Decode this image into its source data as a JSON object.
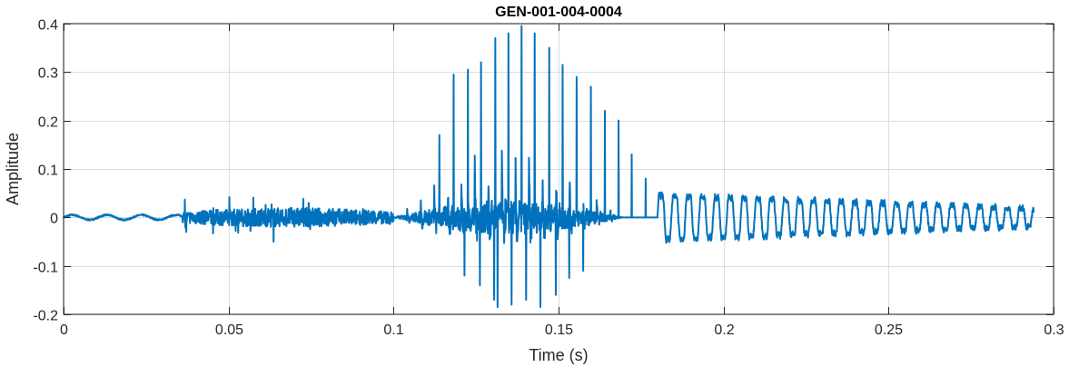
{
  "chart_data": {
    "type": "line",
    "title": "GEN-001-004-0004",
    "xlabel": "Time (s)",
    "ylabel": "Amplitude",
    "xlim": [
      0,
      0.3
    ],
    "ylim": [
      -0.2,
      0.4
    ],
    "x_ticks": [
      0,
      0.05,
      0.1,
      0.15,
      0.2,
      0.25,
      0.3
    ],
    "x_tick_labels": [
      "0",
      "0.05",
      "0.1",
      "0.15",
      "0.2",
      "0.25",
      "0.3"
    ],
    "y_ticks": [
      -0.2,
      -0.1,
      0,
      0.1,
      0.2,
      0.3,
      0.4
    ],
    "y_tick_labels": [
      "-0.2",
      "-0.1",
      "0",
      "0.1",
      "0.2",
      "0.3",
      "0.4"
    ],
    "grid": true,
    "line_color": "#0072BD",
    "axis_color": "#262626",
    "grid_color": "#dcdcdc",
    "series": [
      {
        "x_start": 0,
        "x_end": 0.294,
        "segments": [
          {
            "t0": 0.0,
            "t1": 0.036,
            "kind": "quiet",
            "amp": 0.005,
            "pos": 0.006,
            "neg": -0.006
          },
          {
            "t0": 0.036,
            "t1": 0.1,
            "kind": "noise",
            "amp": 0.02,
            "pos": 0.03,
            "neg": -0.04
          },
          {
            "t0": 0.1,
            "t1": 0.18,
            "kind": "voiced",
            "period": 0.0041,
            "pos": 0.2,
            "neg": -0.12
          },
          {
            "t0": 0.18,
            "t1": 0.294,
            "kind": "oscillation",
            "period": 0.0042,
            "pos": 0.05,
            "neg": -0.06
          }
        ],
        "spikes": [
          {
            "x": 0.0372,
            "y": 0.055
          },
          {
            "x": 0.0372,
            "y": -0.03
          },
          {
            "x": 0.0453,
            "y": 0.056
          },
          {
            "x": 0.0453,
            "y": -0.033
          },
          {
            "x": 0.0636,
            "y": 0.108
          },
          {
            "x": 0.0636,
            "y": -0.05
          },
          {
            "x": 0.1139,
            "y": 0.17
          },
          {
            "x": 0.1182,
            "y": 0.295
          },
          {
            "x": 0.1225,
            "y": 0.305
          },
          {
            "x": 0.1265,
            "y": 0.32
          },
          {
            "x": 0.1308,
            "y": 0.37
          },
          {
            "x": 0.1348,
            "y": 0.38
          },
          {
            "x": 0.1388,
            "y": 0.395
          },
          {
            "x": 0.1428,
            "y": 0.38
          },
          {
            "x": 0.1472,
            "y": 0.35
          },
          {
            "x": 0.1512,
            "y": 0.315
          },
          {
            "x": 0.1555,
            "y": 0.29
          },
          {
            "x": 0.1598,
            "y": 0.27
          },
          {
            "x": 0.164,
            "y": 0.22
          },
          {
            "x": 0.1682,
            "y": 0.2
          },
          {
            "x": 0.1722,
            "y": 0.13
          },
          {
            "x": 0.1764,
            "y": 0.08
          },
          {
            "x": 0.1215,
            "y": -0.12
          },
          {
            "x": 0.1262,
            "y": -0.14
          },
          {
            "x": 0.1305,
            "y": -0.17
          },
          {
            "x": 0.1315,
            "y": -0.185
          },
          {
            "x": 0.1358,
            "y": -0.18
          },
          {
            "x": 0.1402,
            "y": -0.17
          },
          {
            "x": 0.1445,
            "y": -0.185
          },
          {
            "x": 0.1492,
            "y": -0.16
          },
          {
            "x": 0.1532,
            "y": -0.125
          },
          {
            "x": 0.1575,
            "y": -0.11
          }
        ],
        "seed": 7
      }
    ]
  }
}
